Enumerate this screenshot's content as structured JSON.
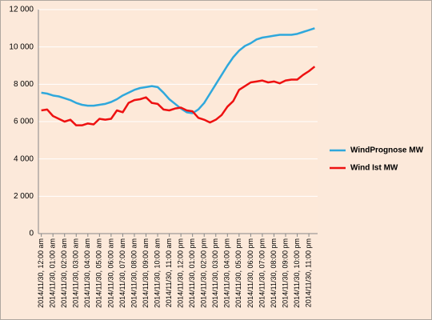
{
  "chart_data": {
    "type": "line",
    "categories": [
      "2014/11/30, 12:00 am",
      null,
      "2014/11/30, 01:00 am",
      null,
      "2014/11/30, 02:00 am",
      null,
      "2014/11/30, 03:00 am",
      null,
      "2014/11/30, 04:00 am",
      null,
      "2014/11/30, 05:00 am",
      null,
      "2014/11/30, 06:00 am",
      null,
      "2014/11/30, 07:00 am",
      null,
      "2014/11/30, 08:00 am",
      null,
      "2014/11/30, 09:00 am",
      null,
      "2014/11/30, 10:00 am",
      null,
      "2014/11/30, 11:00 am",
      null,
      "2014/11/30, 12:00 pm",
      null,
      "2014/11/30, 01:00 pm",
      null,
      "2014/11/30, 02:00 pm",
      null,
      "2014/11/30, 03:00 pm",
      null,
      "2014/11/30, 04:00 pm",
      null,
      "2014/11/30, 05:00 pm",
      null,
      "2014/11/30, 06:00 pm",
      null,
      "2014/11/30, 07:00 pm",
      null,
      "2014/11/30, 08:00 pm",
      null,
      "2014/11/30, 09:00 pm",
      null,
      "2014/11/30, 10:00 pm",
      null,
      "2014/11/30, 11:00 pm",
      null
    ],
    "series": [
      {
        "name": "WindPrognose MW",
        "color": "#2fa8dc",
        "values": [
          7550,
          7500,
          7400,
          7350,
          7250,
          7150,
          7000,
          6900,
          6850,
          6850,
          6900,
          6950,
          7050,
          7200,
          7400,
          7550,
          7700,
          7800,
          7850,
          7900,
          7850,
          7550,
          7200,
          6950,
          6700,
          6500,
          6450,
          6650,
          7000,
          7500,
          8000,
          8500,
          9000,
          9450,
          9800,
          10050,
          10200,
          10400,
          10500,
          10550,
          10600,
          10650,
          10650,
          10650,
          10700,
          10800,
          10900,
          11000
        ]
      },
      {
        "name": "Wind Ist MW",
        "color": "#ee1111",
        "values": [
          6600,
          6650,
          6300,
          6150,
          6000,
          6100,
          5800,
          5800,
          5900,
          5850,
          6150,
          6100,
          6150,
          6600,
          6500,
          7000,
          7150,
          7200,
          7300,
          7000,
          6950,
          6650,
          6600,
          6700,
          6750,
          6600,
          6550,
          6200,
          6100,
          5950,
          6100,
          6350,
          6800,
          7100,
          7700,
          7900,
          8100,
          8150,
          8200,
          8100,
          8150,
          8050,
          8200,
          8250,
          8250,
          8500,
          8700,
          8950
        ]
      }
    ],
    "ylim": [
      0,
      12000
    ],
    "yticks": [
      0,
      {
        "value": 2000,
        "label": "2 000"
      },
      {
        "value": 4000,
        "label": "4 000"
      },
      {
        "value": 6000,
        "label": "6 000"
      },
      {
        "value": 8000,
        "label": "8 000"
      },
      {
        "value": 10000,
        "label": "10 000"
      },
      {
        "value": 12000,
        "label": "12 000"
      }
    ],
    "grid": true,
    "legend": "right"
  }
}
